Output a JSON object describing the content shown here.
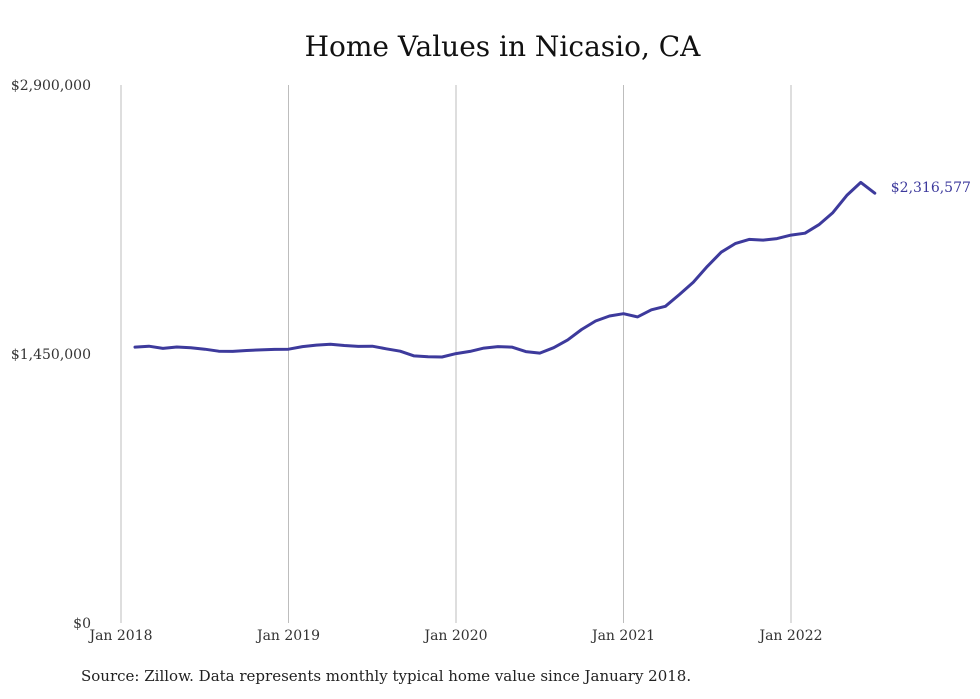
{
  "chart_data": {
    "type": "line",
    "title": "Home Values in Nicasio, CA",
    "xlabel": "",
    "ylabel": "",
    "ylim": [
      0,
      2900000
    ],
    "y_ticks": [
      {
        "value": 0,
        "label": "$0"
      },
      {
        "value": 1450000,
        "label": "$1,450,000"
      },
      {
        "value": 2900000,
        "label": "$2,900,000"
      }
    ],
    "x_ticks": [
      {
        "value": "2018-01",
        "label": "Jan 2018"
      },
      {
        "value": "2019-01",
        "label": "Jan 2019"
      },
      {
        "value": "2020-01",
        "label": "Jan 2020"
      },
      {
        "value": "2021-01",
        "label": "Jan 2021"
      },
      {
        "value": "2022-01",
        "label": "Jan 2022"
      }
    ],
    "grid": {
      "vertical": true,
      "horizontal": false
    },
    "line_color": "#3d3a9c",
    "end_label": "$2,316,577",
    "series": [
      {
        "x": [
          "2018-02",
          "2018-03",
          "2018-04",
          "2018-05",
          "2018-06",
          "2018-07",
          "2018-08",
          "2018-09",
          "2018-10",
          "2018-11",
          "2018-12",
          "2019-01",
          "2019-02",
          "2019-03",
          "2019-04",
          "2019-05",
          "2019-06",
          "2019-07",
          "2019-08",
          "2019-09",
          "2019-10",
          "2019-11",
          "2019-12",
          "2020-01",
          "2020-02",
          "2020-03",
          "2020-04",
          "2020-05",
          "2020-06",
          "2020-07",
          "2020-08",
          "2020-09",
          "2020-10",
          "2020-11",
          "2020-12",
          "2021-01",
          "2021-02",
          "2021-03",
          "2021-04",
          "2021-05",
          "2021-06",
          "2021-07",
          "2021-08",
          "2021-09",
          "2021-10",
          "2021-11",
          "2021-12",
          "2022-01",
          "2022-02",
          "2022-03",
          "2022-04",
          "2022-05",
          "2022-06",
          "2022-07"
        ],
        "y": [
          1487000,
          1492000,
          1480000,
          1488000,
          1484000,
          1476000,
          1465000,
          1464000,
          1469000,
          1472000,
          1475000,
          1476000,
          1490000,
          1498000,
          1503000,
          1496000,
          1491000,
          1492000,
          1478000,
          1465000,
          1440000,
          1435000,
          1434000,
          1452000,
          1464000,
          1482000,
          1490000,
          1487000,
          1463000,
          1455000,
          1484000,
          1526000,
          1582000,
          1628000,
          1655000,
          1667000,
          1650000,
          1688000,
          1707000,
          1770000,
          1837000,
          1922000,
          1999000,
          2045000,
          2068000,
          2064000,
          2072000,
          2091000,
          2101000,
          2147000,
          2212000,
          2305000,
          2375000,
          2316577
        ]
      }
    ]
  },
  "footer": {
    "source": "Source: Zillow. Data represents monthly typical home value since January 2018."
  }
}
